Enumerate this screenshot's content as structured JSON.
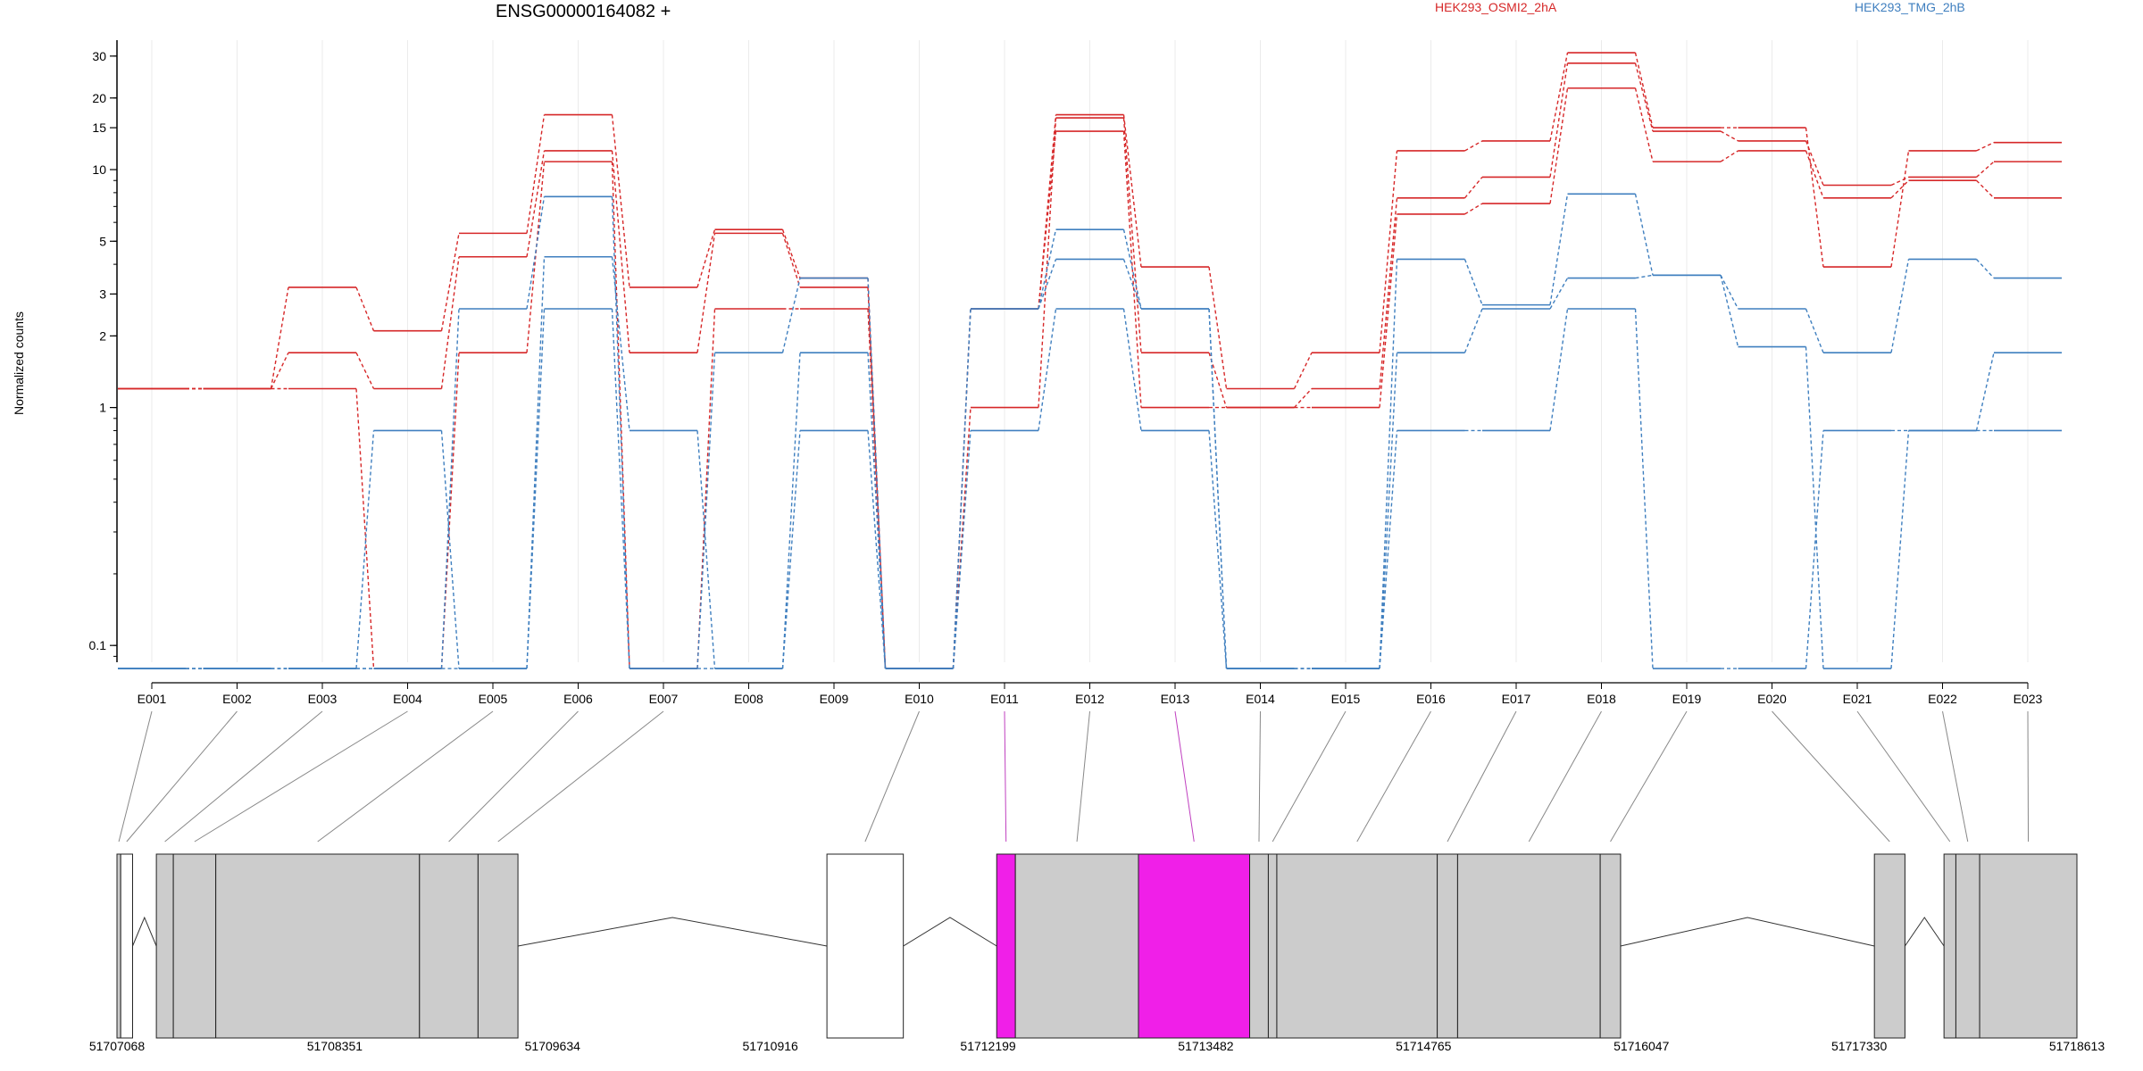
{
  "chart_data": {
    "type": "line",
    "title": "ENSG00000164082 +",
    "ylabel": "Normalized counts",
    "xlabel": "",
    "y_scale": "log",
    "ylim": [
      0.085,
      35
    ],
    "y_ticks": [
      0.1,
      1,
      2,
      3,
      5,
      10,
      15,
      20,
      30
    ],
    "y_tick_labels": [
      "0.1",
      "1",
      "2",
      "3",
      "5",
      "10",
      "15",
      "20",
      "30"
    ],
    "categories": [
      "E001",
      "E002",
      "E003",
      "E004",
      "E005",
      "E006",
      "E007",
      "E008",
      "E009",
      "E010",
      "E011",
      "E012",
      "E013",
      "E014",
      "E015",
      "E016",
      "E017",
      "E018",
      "E019",
      "E020",
      "E021",
      "E022",
      "E023"
    ],
    "legend": [
      {
        "label": "HEK293_OSMI2_2hA",
        "color": "#d62728"
      },
      {
        "label": "HEK293_TMG_2hB",
        "color": "#3f7fbf"
      }
    ],
    "series": [
      {
        "group": "HEK293_OSMI2_2hA",
        "color": "#d62728",
        "values": [
          1.2,
          1.2,
          3.2,
          2.1,
          5.4,
          17.0,
          3.2,
          5.6,
          3.5,
          0.08,
          2.6,
          17.0,
          3.9,
          1.2,
          1.7,
          12.0,
          13.2,
          31.0,
          15.0,
          15.0,
          3.9,
          12.0,
          13.0
        ]
      },
      {
        "group": "HEK293_OSMI2_2hA",
        "color": "#d62728",
        "values": [
          1.2,
          1.2,
          1.7,
          1.2,
          4.3,
          12.0,
          1.7,
          5.4,
          3.2,
          0.08,
          1.0,
          16.5,
          1.7,
          1.0,
          1.2,
          7.6,
          9.3,
          28.0,
          14.5,
          13.2,
          8.6,
          9.3,
          10.8
        ]
      },
      {
        "group": "HEK293_OSMI2_2hA",
        "color": "#d62728",
        "values": [
          1.2,
          1.2,
          1.2,
          0.08,
          1.7,
          10.8,
          0.08,
          2.6,
          2.6,
          0.08,
          2.6,
          14.5,
          1.0,
          1.0,
          1.0,
          6.5,
          7.2,
          22.0,
          10.8,
          12.0,
          7.6,
          9.0,
          7.6
        ]
      },
      {
        "group": "HEK293_TMG_2hB",
        "color": "#3f7fbf",
        "values": [
          0.08,
          0.08,
          0.08,
          0.08,
          2.6,
          7.7,
          0.08,
          1.7,
          3.5,
          0.08,
          2.6,
          5.6,
          2.6,
          0.08,
          0.08,
          4.2,
          2.7,
          7.9,
          3.6,
          2.6,
          1.7,
          4.2,
          3.5
        ]
      },
      {
        "group": "HEK293_TMG_2hB",
        "color": "#3f7fbf",
        "values": [
          0.08,
          0.08,
          0.08,
          0.8,
          0.08,
          4.3,
          0.8,
          0.08,
          1.7,
          0.08,
          2.6,
          4.2,
          2.6,
          0.08,
          0.08,
          1.7,
          2.6,
          3.5,
          3.6,
          1.8,
          0.08,
          0.8,
          1.7
        ]
      },
      {
        "group": "HEK293_TMG_2hB",
        "color": "#3f7fbf",
        "values": [
          0.08,
          0.08,
          0.08,
          0.08,
          0.08,
          2.6,
          0.08,
          0.08,
          0.8,
          0.08,
          0.8,
          2.6,
          0.8,
          0.08,
          0.08,
          0.8,
          0.8,
          2.6,
          0.08,
          0.08,
          0.8,
          0.8,
          0.8
        ]
      }
    ],
    "genome": {
      "range": [
        51707068,
        51718613
      ],
      "tick_labels": [
        "51707068",
        "51708351",
        "51709634",
        "51710916",
        "51712199",
        "51713482",
        "51714765",
        "51716047",
        "51717330",
        "51718613"
      ],
      "exons": [
        {
          "id": "E001",
          "start": 51707068,
          "end": 51707090,
          "fill": "#cccccc"
        },
        {
          "id": "E002",
          "start": 51707090,
          "end": 51707160,
          "fill": "#ffffff"
        },
        {
          "id": "E003",
          "start": 51707300,
          "end": 51707400,
          "fill": "#cccccc"
        },
        {
          "id": "E004",
          "start": 51707400,
          "end": 51707650,
          "fill": "#cccccc"
        },
        {
          "id": "E005",
          "start": 51707650,
          "end": 51708850,
          "fill": "#cccccc"
        },
        {
          "id": "E006",
          "start": 51708850,
          "end": 51709195,
          "fill": "#cccccc"
        },
        {
          "id": "E007",
          "start": 51709195,
          "end": 51709430,
          "fill": "#cccccc"
        },
        {
          "id": "E010",
          "start": 51711250,
          "end": 51711700,
          "fill": "#ffffff"
        },
        {
          "id": "E011",
          "start": 51712250,
          "end": 51712360,
          "fill": "#f01fe8"
        },
        {
          "id": "E012",
          "start": 51712360,
          "end": 51713085,
          "fill": "#cccccc"
        },
        {
          "id": "E013",
          "start": 51713085,
          "end": 51713740,
          "fill": "#f01fe8"
        },
        {
          "id": "E014",
          "start": 51713740,
          "end": 51713850,
          "fill": "#cccccc"
        },
        {
          "id": "E015",
          "start": 51713850,
          "end": 51713900,
          "fill": "#cccccc"
        },
        {
          "id": "E016",
          "start": 51713900,
          "end": 51714845,
          "fill": "#cccccc"
        },
        {
          "id": "E017",
          "start": 51714845,
          "end": 51714965,
          "fill": "#cccccc"
        },
        {
          "id": "E018",
          "start": 51714965,
          "end": 51715805,
          "fill": "#cccccc"
        },
        {
          "id": "E019",
          "start": 51715805,
          "end": 51715925,
          "fill": "#cccccc"
        },
        {
          "id": "E020",
          "start": 51717420,
          "end": 51717600,
          "fill": "#cccccc"
        },
        {
          "id": "E021",
          "start": 51717830,
          "end": 51717900,
          "fill": "#cccccc"
        },
        {
          "id": "E022",
          "start": 51717900,
          "end": 51718040,
          "fill": "#cccccc"
        },
        {
          "id": "E023",
          "start": 51718040,
          "end": 51718613,
          "fill": "#cccccc"
        }
      ],
      "introns": [
        [
          51707160,
          51707300
        ],
        [
          51709430,
          51711250
        ],
        [
          51711700,
          51712250
        ],
        [
          51715925,
          51717420
        ],
        [
          51717600,
          51717830
        ]
      ]
    }
  }
}
